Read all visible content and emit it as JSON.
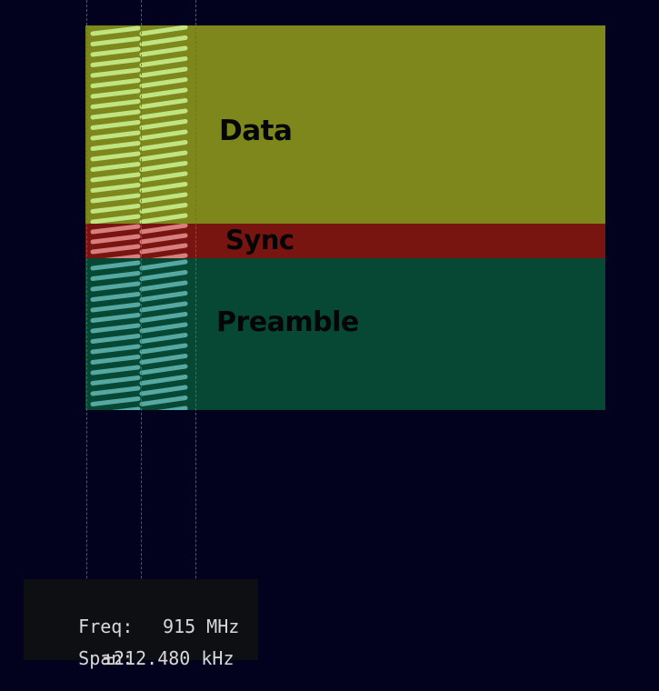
{
  "colors": {
    "background": "#02021e",
    "data_region": "#7d871c",
    "sync_region": "#781511",
    "preamble_region": "#064834",
    "data_chirp": "#c8ef8e",
    "sync_chirp": "#e48a8a",
    "preamble_chirp": "#5fb4b0"
  },
  "regions": {
    "data": {
      "label": "Data"
    },
    "sync": {
      "label": "Sync"
    },
    "preamble": {
      "label": "Preamble"
    }
  },
  "info": {
    "freq_label": "Freq:",
    "freq_value": "915 MHz",
    "span_label": "Span:",
    "span_value": "±212.480 kHz"
  }
}
